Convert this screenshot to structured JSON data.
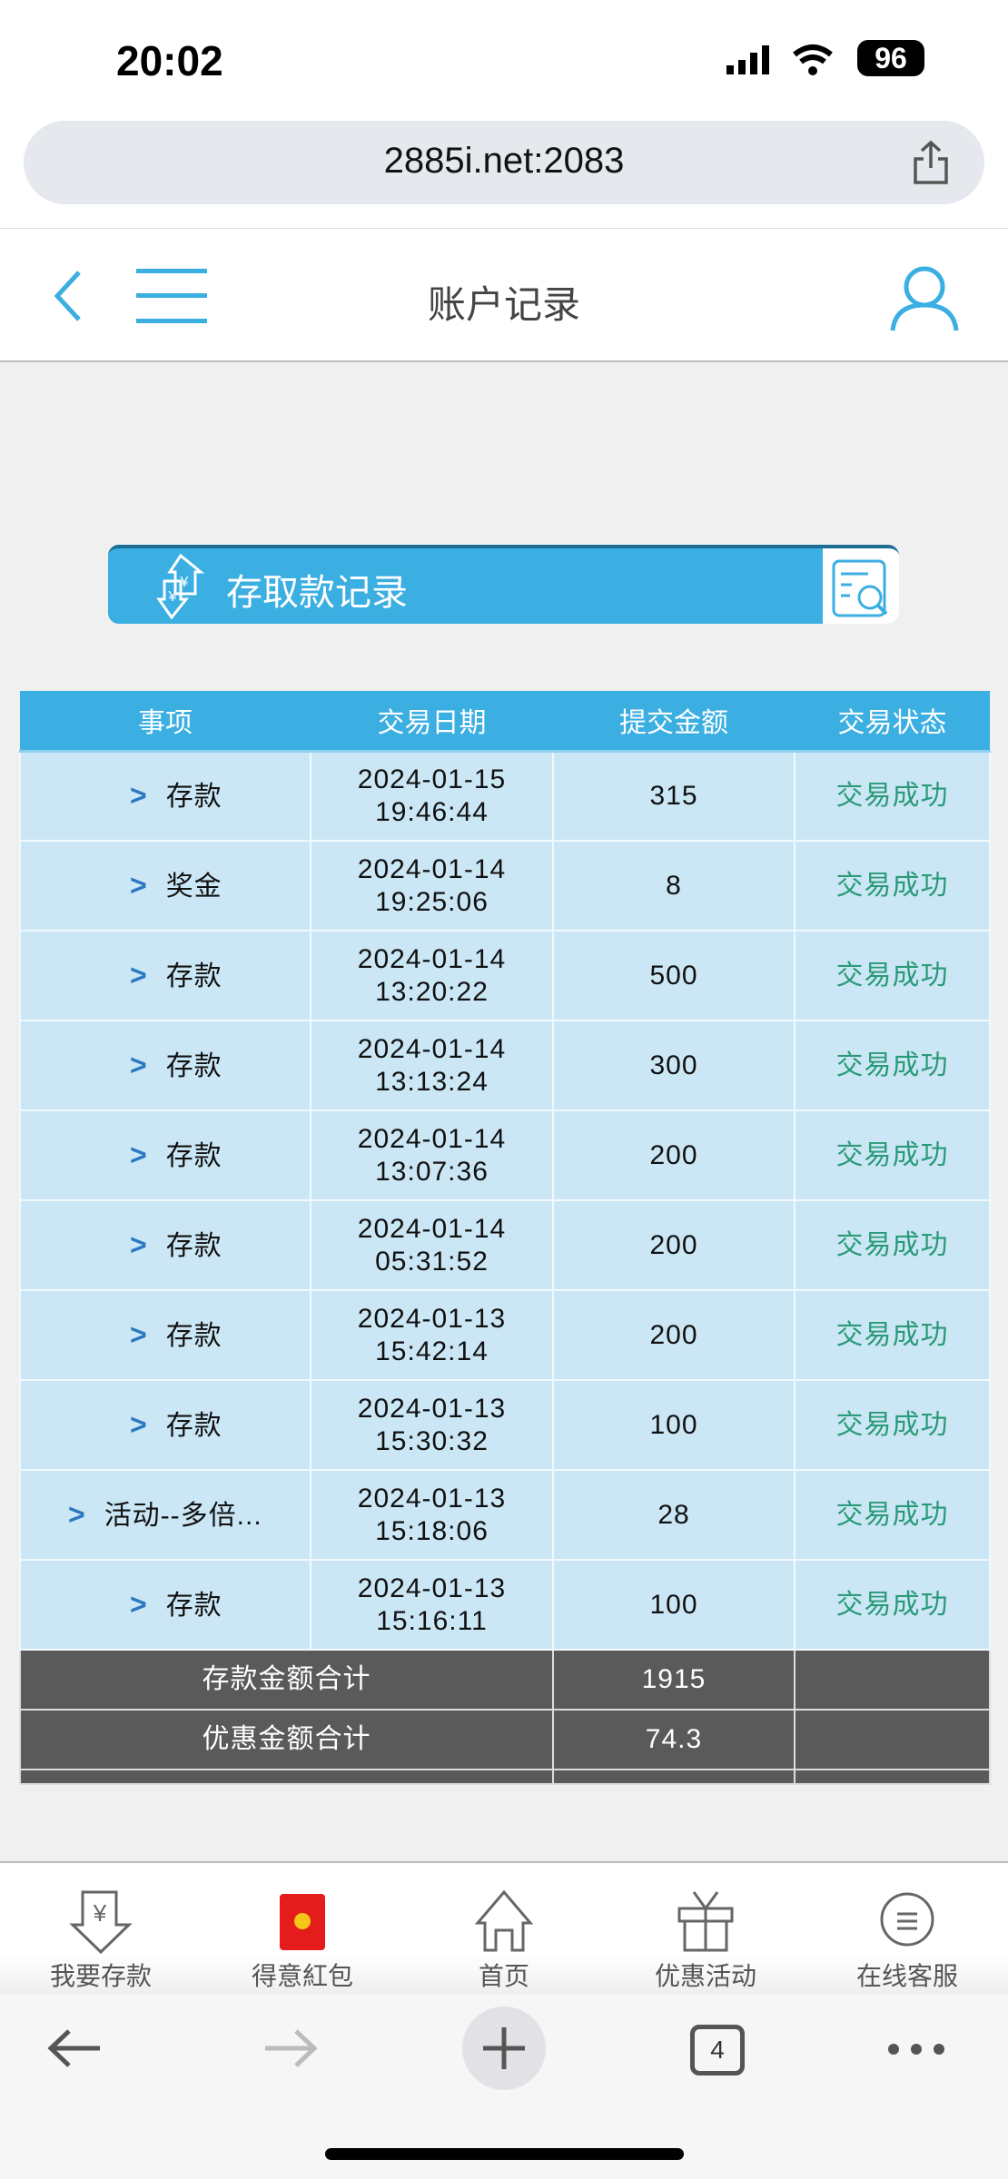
{
  "status_bar": {
    "time": "20:02",
    "battery": "96"
  },
  "browser": {
    "url": "2885i.net:2083",
    "tab_count": "4"
  },
  "header": {
    "title": "账户记录"
  },
  "banner": {
    "title": "存取款记录"
  },
  "table": {
    "columns": [
      "事项",
      "交易日期",
      "提交金额",
      "交易状态"
    ],
    "rows": [
      {
        "item": "存款",
        "date": "2024-01-15",
        "time": "19:46:44",
        "amount": "315",
        "status": "交易成功"
      },
      {
        "item": "奖金",
        "date": "2024-01-14",
        "time": "19:25:06",
        "amount": "8",
        "status": "交易成功"
      },
      {
        "item": "存款",
        "date": "2024-01-14",
        "time": "13:20:22",
        "amount": "500",
        "status": "交易成功"
      },
      {
        "item": "存款",
        "date": "2024-01-14",
        "time": "13:13:24",
        "amount": "300",
        "status": "交易成功"
      },
      {
        "item": "存款",
        "date": "2024-01-14",
        "time": "13:07:36",
        "amount": "200",
        "status": "交易成功"
      },
      {
        "item": "存款",
        "date": "2024-01-14",
        "time": "05:31:52",
        "amount": "200",
        "status": "交易成功"
      },
      {
        "item": "存款",
        "date": "2024-01-13",
        "time": "15:42:14",
        "amount": "200",
        "status": "交易成功"
      },
      {
        "item": "存款",
        "date": "2024-01-13",
        "time": "15:30:32",
        "amount": "100",
        "status": "交易成功"
      },
      {
        "item": "活动--多倍...",
        "date": "2024-01-13",
        "time": "15:18:06",
        "amount": "28",
        "status": "交易成功"
      },
      {
        "item": "存款",
        "date": "2024-01-13",
        "time": "15:16:11",
        "amount": "100",
        "status": "交易成功"
      }
    ],
    "summary": [
      {
        "label": "存款金额合计",
        "value": "1915"
      },
      {
        "label": "优惠金额合计",
        "value": "74.3"
      }
    ]
  },
  "tabbar": [
    {
      "label": "我要存款",
      "icon": "deposit-arrow-icon"
    },
    {
      "label": "得意紅包",
      "icon": "red-envelope-icon"
    },
    {
      "label": "首页",
      "icon": "home-icon"
    },
    {
      "label": "优惠活动",
      "icon": "gift-icon"
    },
    {
      "label": "在线客服",
      "icon": "chat-icon"
    }
  ],
  "colors": {
    "accent": "#3baee2",
    "row_bg": "#cbe7f5",
    "success": "#2a9a78",
    "summary_bg": "#5a5a5a"
  }
}
